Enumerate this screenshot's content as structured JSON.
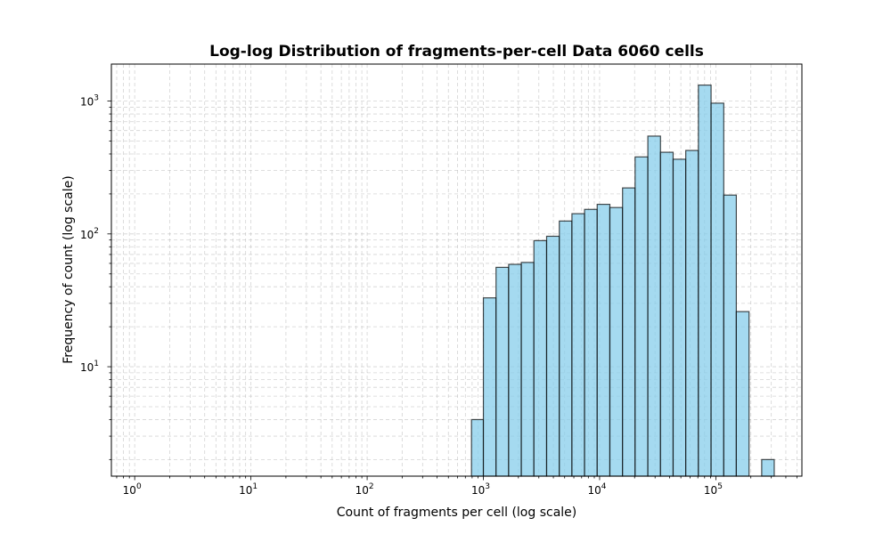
{
  "chart_data": {
    "type": "bar",
    "title": "Log-log Distribution of fragments-per-cell Data 6060 cells",
    "xlabel": "Count of fragments per cell (log scale)",
    "ylabel": "Frequency of count (log scale)",
    "xscale": "log",
    "yscale": "log",
    "xlim": [
      0.63,
      550000
    ],
    "ylim": [
      1.5,
      1900
    ],
    "grid": true,
    "x_major_ticks": [
      {
        "value": 1,
        "base": "10",
        "exp": "0"
      },
      {
        "value": 10,
        "base": "10",
        "exp": "1"
      },
      {
        "value": 100,
        "base": "10",
        "exp": "2"
      },
      {
        "value": 1000,
        "base": "10",
        "exp": "3"
      },
      {
        "value": 10000,
        "base": "10",
        "exp": "4"
      },
      {
        "value": 100000,
        "base": "10",
        "exp": "5"
      }
    ],
    "y_major_ticks": [
      {
        "value": 10,
        "base": "10",
        "exp": "1"
      },
      {
        "value": 100,
        "base": "10",
        "exp": "2"
      },
      {
        "value": 1000,
        "base": "10",
        "exp": "3"
      }
    ],
    "bar_color": "#87CEEB",
    "edge_color": "#000000",
    "bins": [
      {
        "left": 790,
        "right": 1000,
        "count": 4
      },
      {
        "left": 1000,
        "right": 1285,
        "count": 33
      },
      {
        "left": 1285,
        "right": 1650,
        "count": 56
      },
      {
        "left": 1650,
        "right": 2120,
        "count": 59
      },
      {
        "left": 2120,
        "right": 2720,
        "count": 61
      },
      {
        "left": 2720,
        "right": 3500,
        "count": 89
      },
      {
        "left": 3500,
        "right": 4500,
        "count": 96
      },
      {
        "left": 4500,
        "right": 5780,
        "count": 125
      },
      {
        "left": 5780,
        "right": 7420,
        "count": 142
      },
      {
        "left": 7420,
        "right": 9530,
        "count": 153
      },
      {
        "left": 9530,
        "right": 12250,
        "count": 167
      },
      {
        "left": 12250,
        "right": 15750,
        "count": 158
      },
      {
        "left": 15750,
        "right": 20200,
        "count": 222
      },
      {
        "left": 20200,
        "right": 26000,
        "count": 380
      },
      {
        "left": 26000,
        "right": 33400,
        "count": 545
      },
      {
        "left": 33400,
        "right": 42900,
        "count": 412
      },
      {
        "left": 42900,
        "right": 55100,
        "count": 365
      },
      {
        "left": 55100,
        "right": 70800,
        "count": 425
      },
      {
        "left": 70800,
        "right": 91000,
        "count": 1320
      },
      {
        "left": 91000,
        "right": 117000,
        "count": 965
      },
      {
        "left": 117000,
        "right": 150000,
        "count": 196
      },
      {
        "left": 150000,
        "right": 193000,
        "count": 26
      },
      {
        "left": 193000,
        "right": 248000,
        "count": 0
      },
      {
        "left": 248000,
        "right": 318000,
        "count": 2
      }
    ]
  }
}
